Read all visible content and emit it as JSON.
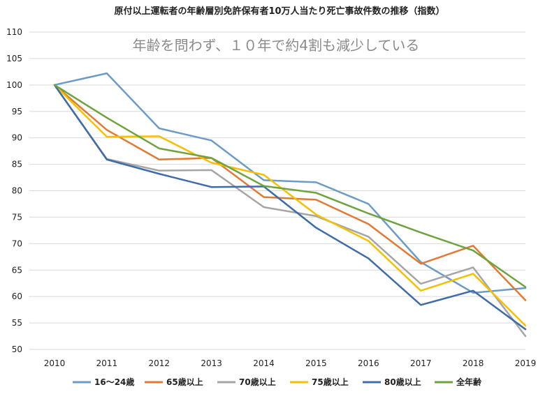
{
  "chart_data": {
    "type": "line",
    "title": "原付以上運転者の年齢層別免許保有者10万人当たり死亡事故件数の推移（指数）",
    "annotation": "年齢を問わず、１０年で約4割も減少している",
    "categories": [
      "2010",
      "2011",
      "2012",
      "2013",
      "2014",
      "2015",
      "2016",
      "2017",
      "2018",
      "2019"
    ],
    "ylim": [
      50,
      110
    ],
    "yticks": [
      50,
      55,
      60,
      65,
      70,
      75,
      80,
      85,
      90,
      95,
      100,
      105,
      110
    ],
    "grid": true,
    "legend_position": "bottom",
    "series": [
      {
        "name": "16～24歳",
        "color": "#6b9bc7",
        "values": [
          100,
          102.2,
          91.8,
          89.5,
          82.0,
          81.6,
          77.5,
          66.5,
          60.7,
          61.6
        ]
      },
      {
        "name": "65歳以上",
        "color": "#e07a34",
        "values": [
          100,
          91.5,
          85.9,
          86.2,
          78.8,
          78.3,
          73.7,
          66.2,
          69.6,
          59.3
        ]
      },
      {
        "name": "70歳以上",
        "color": "#a5a5a5",
        "values": [
          100,
          86.0,
          83.8,
          83.9,
          76.9,
          75.2,
          71.3,
          62.4,
          65.5,
          52.5
        ]
      },
      {
        "name": "75歳以上",
        "color": "#f5c000",
        "values": [
          100,
          90.2,
          90.3,
          85.3,
          83.0,
          75.5,
          70.5,
          61.1,
          64.3,
          54.5
        ]
      },
      {
        "name": "80歳以上",
        "color": "#3f6ca8",
        "values": [
          100,
          85.9,
          83.2,
          80.7,
          80.8,
          73.0,
          67.2,
          58.4,
          61.1,
          53.8
        ]
      },
      {
        "name": "全年齢",
        "color": "#6fa33e",
        "values": [
          100,
          93.8,
          88.0,
          86.2,
          80.9,
          79.6,
          75.7,
          72.1,
          68.7,
          61.8
        ]
      }
    ]
  }
}
